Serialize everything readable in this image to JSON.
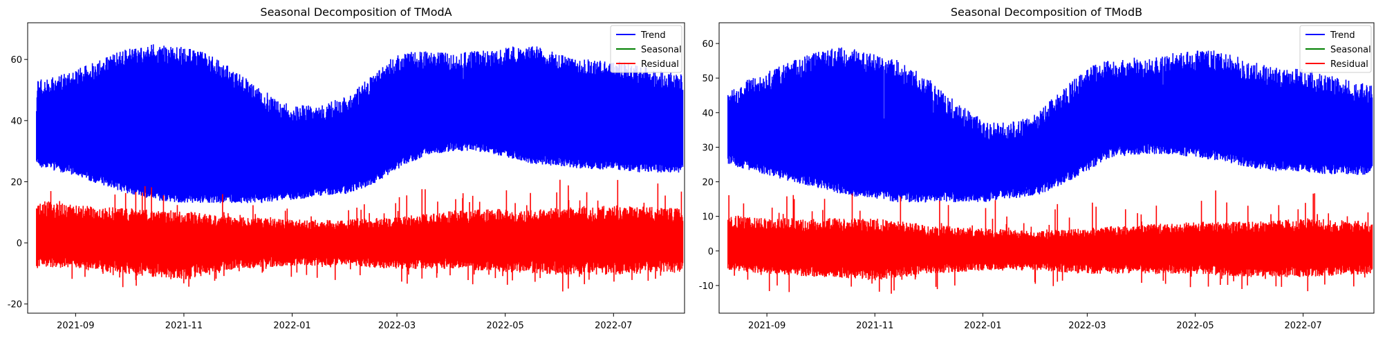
{
  "chart_data": [
    {
      "type": "line",
      "title": "Seasonal Decomposition of TModA",
      "xlabel": "",
      "ylabel": "",
      "x_range": [
        "2021-08-05",
        "2022-08-10"
      ],
      "xticks": [
        "2021-09",
        "2021-11",
        "2022-01",
        "2022-03",
        "2022-05",
        "2022-07"
      ],
      "ylim": [
        -23,
        72
      ],
      "yticks": [
        -20,
        0,
        20,
        40,
        60
      ],
      "grid": false,
      "legend_position": "top-right",
      "series": [
        {
          "name": "Trend",
          "color": "#0000ff",
          "x": [
            "2021-08-10",
            "2021-09-01",
            "2021-09-15",
            "2021-10-01",
            "2021-10-15",
            "2021-11-01",
            "2021-11-15",
            "2021-12-01",
            "2021-12-15",
            "2022-01-01",
            "2022-01-15",
            "2022-02-01",
            "2022-02-15",
            "2022-03-01",
            "2022-03-15",
            "2022-04-01",
            "2022-04-15",
            "2022-05-01",
            "2022-05-15",
            "2022-06-01",
            "2022-06-15",
            "2022-07-01",
            "2022-07-15",
            "2022-08-09"
          ],
          "upper": [
            53,
            57,
            60,
            64,
            65,
            64,
            62,
            56,
            50,
            45,
            45,
            48,
            55,
            62,
            63,
            62,
            63,
            64,
            65,
            62,
            60,
            60,
            58,
            55
          ],
          "lower": [
            25,
            22,
            19,
            16,
            14,
            13,
            13,
            13,
            13,
            14,
            15,
            16,
            19,
            24,
            28,
            30,
            30,
            28,
            26,
            25,
            24,
            24,
            23,
            23
          ]
        },
        {
          "name": "Seasonal",
          "color": "#008000",
          "x": [
            "2021-08-10",
            "2022-08-09"
          ],
          "values": [
            0,
            0
          ]
        },
        {
          "name": "Residual",
          "color": "#ff0000",
          "x": [
            "2021-08-10",
            "2021-09-01",
            "2021-10-01",
            "2021-11-01",
            "2021-12-01",
            "2022-01-01",
            "2022-02-01",
            "2022-03-01",
            "2022-04-01",
            "2022-05-01",
            "2022-06-01",
            "2022-07-01",
            "2022-08-09"
          ],
          "upper": [
            15,
            13,
            12,
            11,
            9,
            8,
            8,
            9,
            11,
            12,
            12,
            13,
            12
          ],
          "lower": [
            -8,
            -9,
            -11,
            -13,
            -9,
            -8,
            -8,
            -9,
            -9,
            -10,
            -11,
            -11,
            -10
          ]
        }
      ]
    },
    {
      "type": "line",
      "title": "Seasonal Decomposition of TModB",
      "xlabel": "",
      "ylabel": "",
      "x_range": [
        "2021-08-05",
        "2022-08-10"
      ],
      "xticks": [
        "2021-09",
        "2021-11",
        "2022-01",
        "2022-03",
        "2022-05",
        "2022-07"
      ],
      "ylim": [
        -18,
        66
      ],
      "yticks": [
        -10,
        0,
        10,
        20,
        30,
        40,
        50,
        60
      ],
      "grid": false,
      "legend_position": "top-right",
      "series": [
        {
          "name": "Trend",
          "color": "#0000ff",
          "x": [
            "2021-08-10",
            "2021-09-01",
            "2021-09-15",
            "2021-10-01",
            "2021-10-15",
            "2021-11-01",
            "2021-11-15",
            "2021-12-01",
            "2021-12-15",
            "2022-01-01",
            "2022-01-15",
            "2022-02-01",
            "2022-02-15",
            "2022-03-01",
            "2022-03-15",
            "2022-04-01",
            "2022-04-15",
            "2022-05-01",
            "2022-05-15",
            "2022-06-01",
            "2022-06-15",
            "2022-07-01",
            "2022-07-15",
            "2022-08-09"
          ],
          "upper": [
            47,
            52,
            55,
            58,
            59,
            57,
            55,
            50,
            44,
            38,
            37,
            40,
            47,
            53,
            56,
            56,
            57,
            58,
            58,
            55,
            53,
            53,
            51,
            48
          ],
          "lower": [
            25,
            22,
            20,
            18,
            16,
            15,
            14,
            14,
            14,
            14,
            15,
            16,
            19,
            23,
            27,
            28,
            28,
            27,
            26,
            24,
            23,
            23,
            22,
            22
          ]
        },
        {
          "name": "Seasonal",
          "color": "#008000",
          "x": [
            "2021-08-10",
            "2022-08-09"
          ],
          "values": [
            0,
            0
          ]
        },
        {
          "name": "Residual",
          "color": "#ff0000",
          "x": [
            "2021-08-10",
            "2021-09-01",
            "2021-10-01",
            "2021-11-01",
            "2021-12-01",
            "2022-01-01",
            "2022-02-01",
            "2022-03-01",
            "2022-04-01",
            "2022-05-01",
            "2022-06-01",
            "2022-07-01",
            "2022-08-09"
          ],
          "upper": [
            11,
            10,
            10,
            10,
            8,
            7,
            6,
            7,
            8,
            9,
            9,
            10,
            9
          ],
          "lower": [
            -6,
            -7,
            -8,
            -9,
            -7,
            -6,
            -6,
            -7,
            -7,
            -7,
            -8,
            -8,
            -7
          ]
        }
      ]
    }
  ]
}
